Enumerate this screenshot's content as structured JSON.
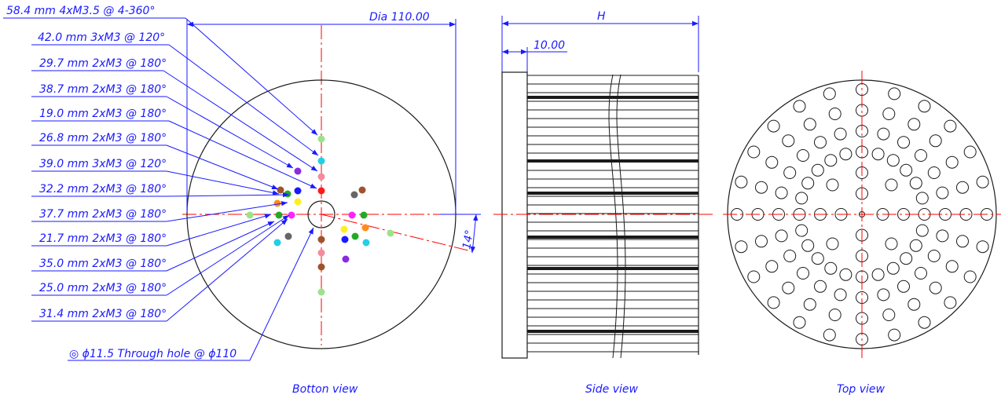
{
  "colors": {
    "outline": "#1a1a1a",
    "annotation": "#1a1aff",
    "centerline": "#ff0000"
  },
  "callouts": [
    "58.4 mm 4xM3.5 @ 4-360°",
    "42.0 mm 3xM3 @ 120°",
    "29.7 mm 2xM3 @ 180°",
    "38.7 mm 2xM3 @ 180°",
    "19.0 mm 2xM3 @ 180°",
    "26.8 mm 2xM3 @ 180°",
    "39.0 mm 3xM3 @ 120°",
    "32.2 mm 2xM3 @ 180°",
    "37.7 mm 2xM3 @ 180°",
    "21.7 mm 2xM3 @ 180°",
    "35.0 mm 2xM3 @ 180°",
    "25.0 mm 2xM3 @ 180°",
    "31.4 mm 2xM3 @ 180°"
  ],
  "bottom_view": {
    "diameter_label": "Dia 110.00",
    "angle_label": "14°",
    "through_hole_label": "◎ ϕ11.5 Through hole @ ϕ110",
    "caption": "Botton view"
  },
  "side_view": {
    "height_label": "H",
    "base_label": "10.00",
    "caption": "Side view"
  },
  "top_view": {
    "caption": "Top view"
  }
}
